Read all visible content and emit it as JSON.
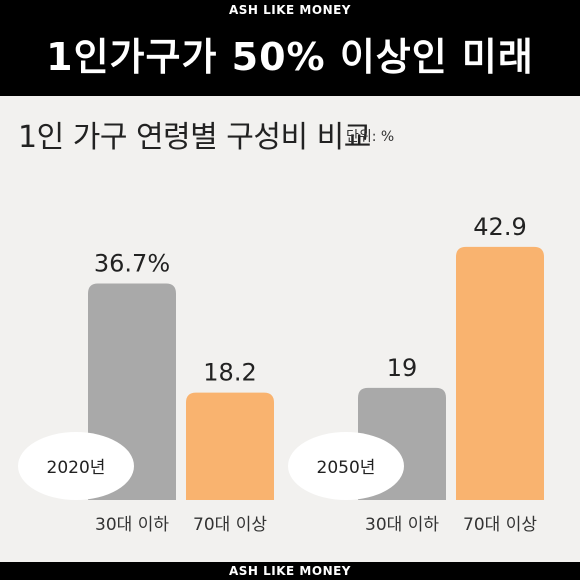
{
  "header": {
    "brand_top": "ASH LIKE MONEY",
    "headline": "1인가구가 50% 이상인 미래"
  },
  "footer": {
    "brand_bottom": "ASH LIKE MONEY"
  },
  "chart_data": {
    "type": "bar",
    "title": "1인 가구 연령별 구성비 비교",
    "unit": "단위: %",
    "colors": {
      "under30": "#a9a9a9",
      "over70": "#f9b36f"
    },
    "groups": [
      {
        "year": "2020년",
        "bars": [
          {
            "category": "30대 이하",
            "value": 36.7,
            "label": "36.7%",
            "color": "#a9a9a9"
          },
          {
            "category": "70대 이상",
            "value": 18.2,
            "label": "18.2",
            "color": "#f9b36f"
          }
        ]
      },
      {
        "year": "2050년",
        "bars": [
          {
            "category": "30대 이하",
            "value": 19,
            "label": "19",
            "color": "#a9a9a9"
          },
          {
            "category": "70대 이상",
            "value": 42.9,
            "label": "42.9",
            "color": "#f9b36f"
          }
        ]
      }
    ]
  }
}
